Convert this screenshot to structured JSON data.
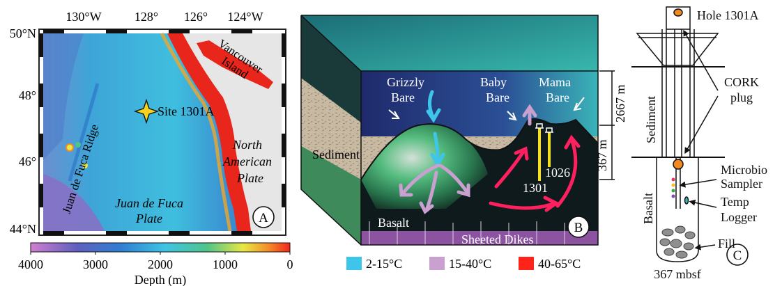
{
  "panel_a": {
    "top_ticks": [
      "130°W",
      "128°",
      "126°",
      "124°W"
    ],
    "lat_ticks": [
      "50°N",
      "48°",
      "46°",
      "44°N"
    ],
    "site_label": "Site 1301A",
    "labels": {
      "island": [
        "Vancouver",
        "Island"
      ],
      "ridge": "Juan de Fuca Ridge",
      "plate_na": [
        "North",
        "American",
        "Plate"
      ],
      "plate_jdf": [
        "Juan de Fuca",
        "Plate"
      ]
    },
    "badge": "A",
    "colorbar": {
      "ticks": [
        "4000",
        "3000",
        "2000",
        "1000",
        "0"
      ],
      "title": "Depth (m)",
      "colors": [
        "#c77fcf",
        "#3a5fb7",
        "#3fb0df",
        "#4fc28a",
        "#e9e845",
        "#f2502a"
      ]
    },
    "land_color": "#e6e6e6",
    "shelf_color": "#e8261b"
  },
  "panel_b": {
    "labels": {
      "grizzly": [
        "Grizzly",
        "Bare"
      ],
      "baby": [
        "Baby",
        "Bare"
      ],
      "mama": [
        "Mama",
        "Bare"
      ],
      "sediment": "Sediment",
      "basalt": "Basalt",
      "dikes": "Sheeted Dikes",
      "well_a": "1026",
      "well_b": "1301"
    },
    "depth_top": "2667 m",
    "depth_bottom": "367 m",
    "badge": "B",
    "legend": [
      {
        "label": "2-15°C",
        "color": "#3ec6ea"
      },
      {
        "label": "15-40°C",
        "color": "#c9a0d0"
      },
      {
        "label": "40-65°C",
        "color": "#ff2419"
      }
    ]
  },
  "panel_c": {
    "title": "Hole 1301A",
    "cork": [
      "CORK",
      "plug"
    ],
    "sediment": "Sediment",
    "basalt": "Basalt",
    "microbio": [
      "Microbio",
      "Sampler"
    ],
    "temp": [
      "Temp",
      "Logger"
    ],
    "fill": "Fill",
    "depth": "367 mbsf",
    "badge": "C"
  }
}
